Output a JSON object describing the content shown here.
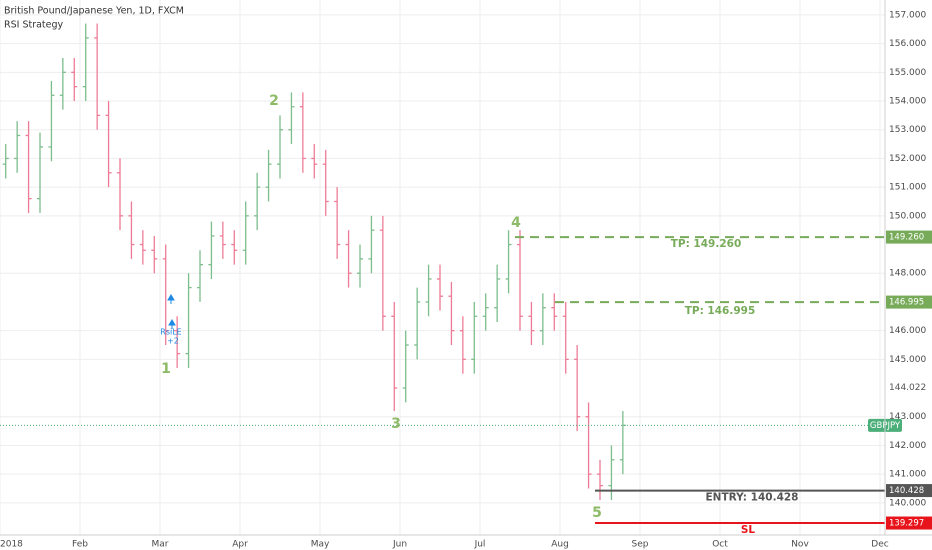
{
  "chart_data": {
    "type": "ohlc",
    "title": "British Pound/Japanese Yen, 1D, FXCM",
    "subtitle": "RSI Strategy",
    "categories": [
      "2018",
      null,
      null,
      null,
      null,
      null,
      null,
      "Feb",
      null,
      null,
      null,
      null,
      null,
      null,
      "Mar",
      null,
      null,
      null,
      null,
      null,
      null,
      "Apr",
      null,
      null,
      null,
      null,
      null,
      null,
      "May",
      null,
      null,
      null,
      null,
      null,
      null,
      "Jun",
      null,
      null,
      null,
      null,
      null,
      null,
      "Jul",
      null,
      null,
      null,
      null,
      null,
      null,
      "Aug",
      null,
      null,
      null,
      null,
      null,
      null,
      "Sep",
      null,
      null,
      null,
      null,
      null,
      null,
      "Oct",
      null,
      null,
      null,
      null,
      null,
      null,
      "Nov",
      null,
      null,
      null,
      null,
      null,
      null,
      "Dec"
    ],
    "open": [
      151.8,
      152.0,
      152.8,
      150.6,
      152.4,
      154.2,
      155.0,
      154.5,
      156.2,
      153.5,
      151.5,
      150.0,
      149.0,
      148.8,
      148.5,
      146.0,
      145.2,
      147.5,
      148.3,
      149.3,
      149.0,
      148.8,
      150.0,
      151.0,
      151.8,
      153.0,
      153.8,
      152.0,
      151.8,
      150.5,
      149.0,
      148.0,
      148.5,
      149.5,
      146.5,
      144.0,
      145.5,
      147.0,
      147.8,
      147.2,
      146.0,
      145.0,
      146.5,
      146.8,
      147.8,
      149.0,
      146.5,
      146.0,
      146.8,
      146.5,
      145.0,
      143.0,
      141.0,
      140.6,
      141.5,
      null,
      null,
      null,
      null,
      null,
      null,
      null,
      null,
      null,
      null,
      null,
      null,
      null,
      null,
      null,
      null,
      null,
      null,
      null,
      null,
      null,
      null,
      null
    ],
    "high": [
      152.5,
      153.3,
      153.3,
      152.9,
      154.7,
      155.5,
      155.5,
      156.7,
      156.7,
      154.0,
      152.0,
      150.5,
      149.5,
      149.3,
      149.0,
      146.5,
      148.0,
      148.8,
      149.8,
      149.8,
      149.5,
      150.5,
      151.5,
      152.3,
      153.5,
      154.3,
      154.3,
      152.5,
      152.3,
      151.0,
      149.5,
      149.0,
      150.0,
      150.0,
      147.0,
      146.0,
      147.5,
      148.3,
      148.3,
      147.7,
      146.5,
      147.0,
      147.3,
      148.3,
      149.5,
      149.5,
      147.0,
      147.3,
      147.3,
      147.0,
      145.5,
      143.5,
      141.5,
      142.0,
      143.2,
      null,
      null,
      null,
      null,
      null,
      null,
      null,
      null,
      null,
      null,
      null,
      null,
      null,
      null,
      null,
      null,
      null,
      null,
      null,
      null,
      null,
      null,
      null
    ],
    "low": [
      151.3,
      151.5,
      150.1,
      150.1,
      151.9,
      153.7,
      154.0,
      154.0,
      153.0,
      151.0,
      149.5,
      148.5,
      148.3,
      148.0,
      145.5,
      144.7,
      144.7,
      147.0,
      147.8,
      148.5,
      148.3,
      148.3,
      149.5,
      150.5,
      151.3,
      152.5,
      151.5,
      151.3,
      150.0,
      148.5,
      147.5,
      147.5,
      148.0,
      146.0,
      143.2,
      143.5,
      145.0,
      146.5,
      146.7,
      145.5,
      144.5,
      144.5,
      146.0,
      146.3,
      147.3,
      146.0,
      145.5,
      145.5,
      146.0,
      144.5,
      142.5,
      140.5,
      140.1,
      140.1,
      141.0,
      null,
      null,
      null,
      null,
      null,
      null,
      null,
      null,
      null,
      null,
      null,
      null,
      null,
      null,
      null,
      null,
      null,
      null,
      null,
      null,
      null,
      null,
      null
    ],
    "close": [
      152.0,
      152.8,
      150.6,
      152.4,
      154.2,
      155.0,
      154.5,
      156.2,
      153.5,
      151.5,
      150.0,
      149.0,
      148.8,
      148.5,
      146.0,
      145.2,
      147.5,
      148.3,
      149.3,
      149.0,
      148.8,
      150.0,
      151.0,
      151.8,
      153.0,
      153.8,
      152.0,
      151.8,
      150.5,
      149.0,
      148.0,
      148.5,
      149.5,
      146.5,
      144.0,
      145.5,
      147.0,
      147.8,
      147.2,
      146.0,
      145.0,
      146.5,
      146.8,
      147.8,
      149.0,
      146.5,
      146.0,
      146.8,
      146.5,
      145.0,
      143.0,
      141.0,
      140.6,
      141.5,
      142.7,
      null,
      null,
      null,
      null,
      null,
      null,
      null,
      null,
      null,
      null,
      null,
      null,
      null,
      null,
      null,
      null,
      null,
      null,
      null,
      null,
      null,
      null,
      null
    ],
    "up_color": "#7cbd8c",
    "down_color": "#ee7b95",
    "ylim": [
      138.88,
      157.52
    ],
    "yticks": [
      {
        "value": 140,
        "label": "140.000"
      },
      {
        "value": 141,
        "label": "141.000"
      },
      {
        "value": 142,
        "label": "142.000"
      },
      {
        "value": 143,
        "label": "143.000"
      },
      {
        "value": 145,
        "label": "145.000"
      },
      {
        "value": 146,
        "label": "146.000"
      },
      {
        "value": 148,
        "label": "148.000"
      },
      {
        "value": 150,
        "label": "150.000"
      },
      {
        "value": 151,
        "label": "151.000"
      },
      {
        "value": 152,
        "label": "152.000"
      },
      {
        "value": 153,
        "label": "153.000"
      },
      {
        "value": 154,
        "label": "154.000"
      },
      {
        "value": 155,
        "label": "155.000"
      },
      {
        "value": 156,
        "label": "156.000"
      },
      {
        "value": 157,
        "label": "157.000"
      }
    ],
    "grid": true,
    "levels": [
      {
        "name": "TP: 149.260",
        "value": 149.26,
        "axis_label": "149.260",
        "color": "#77ab59",
        "style": "dashed"
      },
      {
        "name": "TP: 146.995",
        "value": 146.995,
        "axis_label": "146.995",
        "color": "#77ab59",
        "style": "dashed"
      },
      {
        "name": "ENTRY: 140.428",
        "value": 140.428,
        "axis_label": "140.428",
        "color": "#555555",
        "style": "solid"
      },
      {
        "name": "SL",
        "value": 139.297,
        "axis_label": "139.297",
        "color": "#e8141b",
        "style": "solid"
      }
    ],
    "last_price": {
      "name": "GBPJPY",
      "value": 142.7,
      "color": "#4caf7a"
    },
    "crosshair_label": {
      "value": 144.022,
      "label": "144.022"
    },
    "annotations": [
      "1",
      "2",
      "3",
      "4",
      "5"
    ],
    "signal": {
      "label": "RsiLE",
      "size": "+2"
    }
  }
}
